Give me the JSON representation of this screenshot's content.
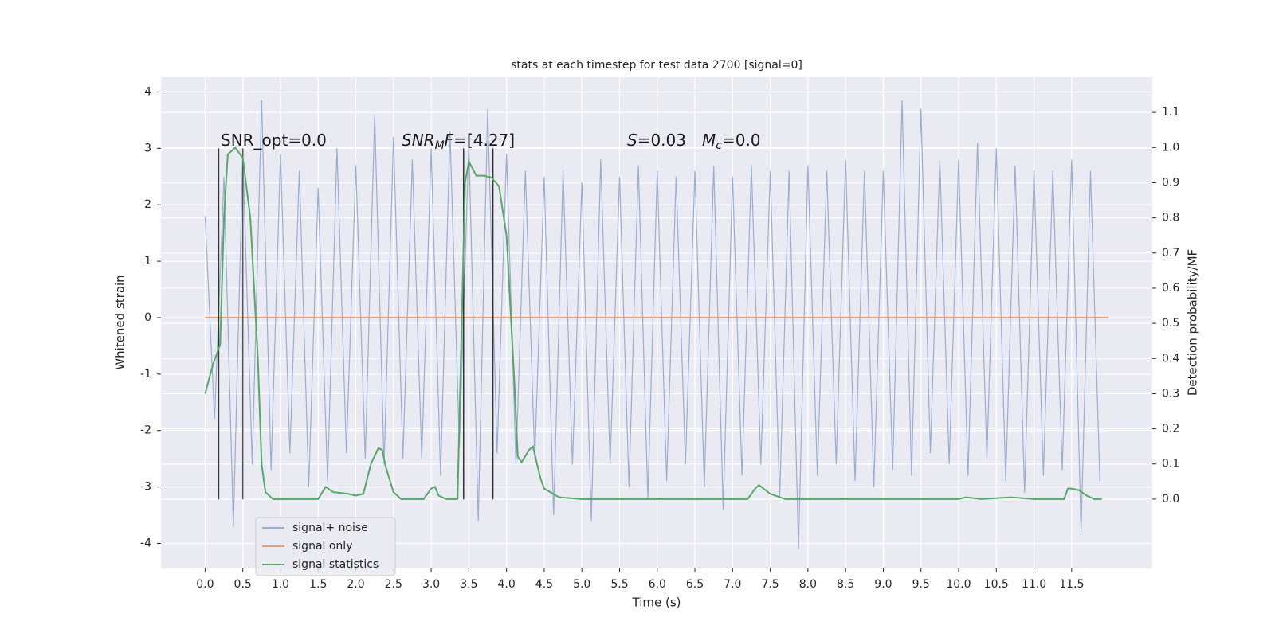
{
  "chart_data": {
    "type": "line",
    "title": "stats at each timestep for test data 2700 [signal=0]",
    "xlabel": "Time (s)",
    "ylabel": "Whitened strain",
    "y2label": "Detection probability/MF",
    "xlim": [
      -0.586,
      12.57
    ],
    "ylim": [
      -4.43,
      4.26
    ],
    "y2lim": [
      -0.195,
      1.2
    ],
    "xticks": [
      {
        "value": 0,
        "label": "0.0"
      },
      0.5,
      {
        "value": 1,
        "label": "1.0"
      },
      1.5,
      {
        "value": 2,
        "label": "2.0"
      },
      2.5,
      {
        "value": 3,
        "label": "3.0"
      },
      3.5,
      {
        "value": 4,
        "label": "4.0"
      },
      4.5,
      {
        "value": 5,
        "label": "5.0"
      },
      5.5,
      {
        "value": 6,
        "label": "6.0"
      },
      6.5,
      {
        "value": 7,
        "label": "7.0"
      },
      7.5,
      {
        "value": 8,
        "label": "8.0"
      },
      8.5,
      {
        "value": 9,
        "label": "9.0"
      },
      9.5,
      {
        "value": 10,
        "label": "10.0"
      },
      10.5,
      {
        "value": 11,
        "label": "11.0"
      },
      11.5
    ],
    "yticks": [
      -4,
      -3,
      -2,
      -1,
      0,
      1,
      2,
      3,
      4
    ],
    "y2ticks": [
      {
        "value": 0,
        "label": "0.0"
      },
      0.1,
      0.2,
      0.3,
      0.4,
      0.5,
      0.6,
      0.7,
      0.8,
      0.9,
      {
        "value": 1,
        "label": "1.0"
      },
      1.1
    ],
    "grid": true,
    "legend": "lower left",
    "series": [
      {
        "name": "signal+ noise",
        "color": "#9aadd2",
        "x": [
          0,
          0.125,
          0.25,
          0.375,
          0.5,
          0.625,
          0.75,
          0.875,
          1,
          1.125,
          1.25,
          1.375,
          1.5,
          1.625,
          1.75,
          1.875,
          2,
          2.125,
          2.25,
          2.375,
          2.5,
          2.625,
          2.75,
          2.875,
          3,
          3.125,
          3.25,
          3.375,
          3.5,
          3.625,
          3.75,
          3.875,
          4,
          4.125,
          4.25,
          4.375,
          4.5,
          4.625,
          4.75,
          4.875,
          5,
          5.125,
          5.25,
          5.375,
          5.5,
          5.625,
          5.75,
          5.875,
          6,
          6.125,
          6.25,
          6.375,
          6.5,
          6.625,
          6.75,
          6.875,
          7,
          7.125,
          7.25,
          7.375,
          7.5,
          7.625,
          7.75,
          7.875,
          8,
          8.125,
          8.25,
          8.375,
          8.5,
          8.625,
          8.75,
          8.875,
          9,
          9.125,
          9.25,
          9.375,
          9.5,
          9.625,
          9.75,
          9.875,
          10,
          10.125,
          10.25,
          10.375,
          10.5,
          10.625,
          10.75,
          10.875,
          11,
          11.125,
          11.25,
          11.375,
          11.5,
          11.625,
          11.75,
          11.875
        ],
        "values": [
          1.8,
          -1.8,
          2.5,
          -3.7,
          2.9,
          -2.6,
          3.85,
          -2.7,
          2.9,
          -2.4,
          2.6,
          -3.0,
          2.3,
          -2.9,
          3.0,
          -2.4,
          2.7,
          -2.5,
          3.6,
          -2.6,
          3.2,
          -2.5,
          2.8,
          -2.5,
          3.0,
          -2.8,
          3.3,
          -2.3,
          3.1,
          -3.6,
          3.7,
          -2.4,
          2.9,
          -2.6,
          2.6,
          -2.5,
          2.5,
          -3.5,
          2.6,
          -2.6,
          2.4,
          -3.6,
          2.8,
          -2.6,
          2.5,
          -3.0,
          2.7,
          -3.2,
          2.6,
          -2.9,
          2.5,
          -2.6,
          2.6,
          -3.0,
          2.7,
          -3.4,
          2.5,
          -2.8,
          2.7,
          -2.6,
          2.6,
          -3.2,
          2.6,
          -4.1,
          2.7,
          -2.8,
          2.6,
          -2.6,
          2.8,
          -2.9,
          2.6,
          -3.0,
          2.6,
          -2.7,
          3.85,
          -2.8,
          3.7,
          -2.4,
          2.8,
          -2.6,
          2.8,
          -2.8,
          3.1,
          -2.5,
          3.0,
          -2.9,
          2.7,
          -3.1,
          2.6,
          -2.8,
          2.6,
          -2.7,
          2.8,
          -3.8,
          2.6,
          -2.9
        ]
      },
      {
        "name": "signal only",
        "color": "#dd9f86",
        "x": [
          0,
          11.99
        ],
        "values": [
          0,
          0
        ]
      },
      {
        "name": "signal statistics",
        "color": "#55a868",
        "axis": "y2",
        "x": [
          0,
          0.1,
          0.2,
          0.25,
          0.3,
          0.4,
          0.5,
          0.6,
          0.7,
          0.75,
          0.8,
          0.9,
          1.5,
          1.6,
          1.7,
          1.9,
          2.0,
          2.1,
          2.2,
          2.3,
          2.35,
          2.4,
          2.5,
          2.6,
          2.9,
          3.0,
          3.05,
          3.1,
          3.2,
          3.35,
          3.45,
          3.5,
          3.6,
          3.7,
          3.8,
          3.9,
          4.0,
          4.1,
          4.15,
          4.2,
          4.3,
          4.35,
          4.45,
          4.5,
          4.7,
          5.0,
          7.2,
          7.3,
          7.35,
          7.5,
          7.7,
          10.0,
          10.1,
          10.3,
          10.7,
          11.0,
          11.4,
          11.45,
          11.5,
          11.6,
          11.7,
          11.8,
          11.9
        ],
        "values": [
          0.3,
          0.38,
          0.44,
          0.8,
          0.98,
          1.0,
          0.97,
          0.8,
          0.4,
          0.1,
          0.02,
          0.0,
          0.0,
          0.035,
          0.02,
          0.015,
          0.01,
          0.015,
          0.1,
          0.145,
          0.14,
          0.09,
          0.02,
          0.0,
          0.0,
          0.03,
          0.035,
          0.01,
          0.0,
          0.0,
          0.9,
          0.96,
          0.92,
          0.92,
          0.915,
          0.89,
          0.75,
          0.35,
          0.12,
          0.105,
          0.14,
          0.15,
          0.06,
          0.03,
          0.005,
          0.0,
          0.0,
          0.03,
          0.04,
          0.015,
          0.0,
          0.0,
          0.005,
          0.0,
          0.005,
          0.0,
          0.0,
          0.03,
          0.03,
          0.025,
          0.01,
          0.0,
          0.0
        ]
      }
    ],
    "vlines": {
      "x": [
        0.18,
        0.5,
        3.43,
        3.82
      ],
      "ymin": -3.22,
      "ymax": 3.0,
      "colors": [
        "#333333",
        "#555555",
        "#333333",
        "#333333"
      ]
    },
    "annotations": [
      [
        "SNR_opt=0.0"
      ],
      [
        "SNR",
        "M",
        "F",
        "=[4.27]"
      ],
      [
        "S",
        "=0.03"
      ],
      [
        "M",
        "c",
        "=0.0"
      ]
    ]
  }
}
